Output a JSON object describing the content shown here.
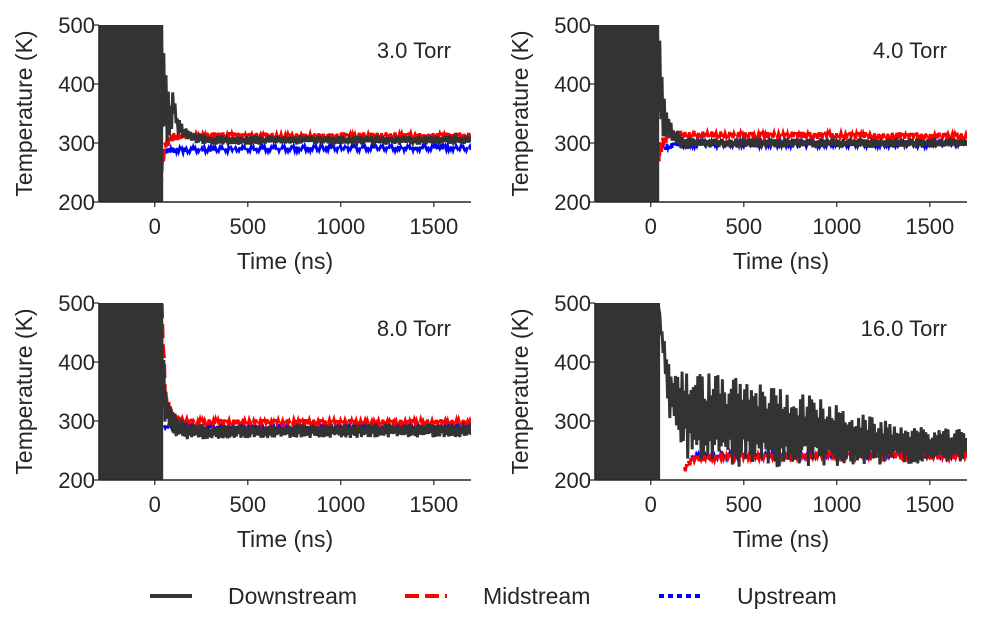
{
  "chart_data": [
    {
      "type": "line",
      "annotation": "3.0 Torr",
      "xlabel": "Time (ns)",
      "ylabel": "Temperature (K)",
      "xlim": [
        -300,
        1700
      ],
      "ylim": [
        200,
        500
      ],
      "xticks": [
        "0",
        "500",
        "1000",
        "1500"
      ],
      "yticks": [
        "200",
        "300",
        "400",
        "500"
      ],
      "x_tick_values": [
        0,
        500,
        1000,
        1500
      ],
      "y_tick_values": [
        200,
        300,
        400,
        500
      ],
      "grid": false,
      "series": [
        {
          "name": "Downstream",
          "color": "#333333",
          "style": "solid",
          "x": [
            -300,
            0,
            40,
            60,
            80,
            100,
            120,
            150,
            200,
            300,
            500,
            800,
            1000,
            1200,
            1500,
            1700
          ],
          "y": [
            500,
            500,
            420,
            360,
            340,
            370,
            330,
            320,
            310,
            305,
            305,
            305,
            305,
            305,
            305,
            305
          ],
          "jitter": [
            300,
            300,
            120,
            60,
            40,
            25,
            15,
            12,
            10,
            8,
            8,
            8,
            8,
            8,
            8,
            8
          ]
        },
        {
          "name": "Midstream",
          "color": "#ff0000",
          "style": "dashed",
          "x": [
            30,
            40,
            60,
            100,
            200,
            500,
            1000,
            1500,
            1700
          ],
          "y": [
            210,
            260,
            300,
            310,
            312,
            312,
            312,
            312,
            312
          ],
          "jitter": [
            10,
            20,
            12,
            8,
            6,
            6,
            6,
            6,
            6
          ]
        },
        {
          "name": "Upstream",
          "color": "#0000ff",
          "style": "dotted",
          "x": [
            50,
            100,
            200,
            500,
            1000,
            1500,
            1700
          ],
          "y": [
            285,
            288,
            288,
            290,
            292,
            292,
            292
          ],
          "jitter": [
            6,
            5,
            4,
            4,
            4,
            4,
            4
          ]
        }
      ]
    },
    {
      "type": "line",
      "annotation": "4.0 Torr",
      "xlabel": "Time (ns)",
      "ylabel": "Temperature (K)",
      "xlim": [
        -300,
        1700
      ],
      "ylim": [
        200,
        500
      ],
      "xticks": [
        "0",
        "500",
        "1000",
        "1500"
      ],
      "yticks": [
        "200",
        "300",
        "400",
        "500"
      ],
      "x_tick_values": [
        0,
        500,
        1000,
        1500
      ],
      "y_tick_values": [
        200,
        300,
        400,
        500
      ],
      "grid": false,
      "series": [
        {
          "name": "Downstream",
          "color": "#333333",
          "style": "solid",
          "x": [
            -300,
            0,
            40,
            60,
            80,
            100,
            150,
            200,
            300,
            500,
            800,
            1000,
            1200,
            1500,
            1700
          ],
          "y": [
            500,
            500,
            410,
            370,
            340,
            320,
            305,
            300,
            300,
            300,
            300,
            300,
            300,
            300,
            300
          ],
          "jitter": [
            300,
            300,
            120,
            60,
            30,
            20,
            15,
            10,
            8,
            8,
            8,
            8,
            8,
            8,
            8
          ]
        },
        {
          "name": "Midstream",
          "color": "#ff0000",
          "style": "dashed",
          "x": [
            40,
            60,
            100,
            200,
            500,
            1000,
            1500,
            1700
          ],
          "y": [
            280,
            300,
            315,
            315,
            313,
            313,
            312,
            312
          ],
          "jitter": [
            20,
            15,
            8,
            6,
            6,
            6,
            6,
            6
          ]
        },
        {
          "name": "Upstream",
          "color": "#0000ff",
          "style": "dotted",
          "x": [
            50,
            100,
            200,
            500,
            1000,
            1500,
            1700
          ],
          "y": [
            292,
            295,
            298,
            298,
            298,
            298,
            298
          ],
          "jitter": [
            6,
            5,
            4,
            4,
            4,
            4,
            4
          ]
        }
      ]
    },
    {
      "type": "line",
      "annotation": "8.0 Torr",
      "xlabel": "Time (ns)",
      "ylabel": "Temperature (K)",
      "xlim": [
        -300,
        1700
      ],
      "ylim": [
        200,
        500
      ],
      "xticks": [
        "0",
        "500",
        "1000",
        "1500"
      ],
      "yticks": [
        "200",
        "300",
        "400",
        "500"
      ],
      "x_tick_values": [
        0,
        500,
        1000,
        1500
      ],
      "y_tick_values": [
        200,
        300,
        400,
        500
      ],
      "grid": false,
      "series": [
        {
          "name": "Downstream",
          "color": "#333333",
          "style": "solid",
          "x": [
            -300,
            0,
            40,
            60,
            100,
            150,
            200,
            300,
            500,
            800,
            1000,
            1200,
            1500,
            1700
          ],
          "y": [
            500,
            500,
            380,
            320,
            295,
            285,
            282,
            282,
            283,
            283,
            283,
            284,
            284,
            285
          ],
          "jitter": [
            300,
            300,
            120,
            30,
            22,
            16,
            14,
            12,
            12,
            12,
            12,
            12,
            12,
            12
          ]
        },
        {
          "name": "Midstream",
          "color": "#ff0000",
          "style": "dashed",
          "x": [
            40,
            60,
            100,
            200,
            500,
            1000,
            1500,
            1700
          ],
          "y": [
            480,
            330,
            305,
            298,
            298,
            298,
            298,
            298
          ],
          "jitter": [
            20,
            15,
            8,
            5,
            5,
            5,
            5,
            5
          ]
        },
        {
          "name": "Upstream",
          "color": "#0000ff",
          "style": "dotted",
          "x": [
            50,
            100,
            200,
            500,
            1000,
            1500,
            1700
          ],
          "y": [
            290,
            290,
            290,
            290,
            290,
            290,
            290
          ],
          "jitter": [
            4,
            4,
            4,
            4,
            4,
            4,
            4
          ]
        }
      ]
    },
    {
      "type": "line",
      "annotation": "16.0 Torr",
      "xlabel": "Time (ns)",
      "ylabel": "Temperature (K)",
      "xlim": [
        -300,
        1700
      ],
      "ylim": [
        200,
        500
      ],
      "xticks": [
        "0",
        "500",
        "1000",
        "1500"
      ],
      "yticks": [
        "200",
        "300",
        "400",
        "500"
      ],
      "x_tick_values": [
        0,
        500,
        1000,
        1500
      ],
      "y_tick_values": [
        200,
        300,
        400,
        500
      ],
      "grid": false,
      "series": [
        {
          "name": "Downstream",
          "color": "#333333",
          "style": "solid",
          "x": [
            -300,
            0,
            40,
            60,
            100,
            200,
            300,
            500,
            700,
            900,
            1100,
            1300,
            1500,
            1700
          ],
          "y": [
            500,
            500,
            500,
            440,
            350,
            310,
            305,
            295,
            290,
            280,
            270,
            262,
            258,
            258
          ],
          "jitter": [
            0,
            0,
            0,
            25,
            45,
            75,
            80,
            75,
            70,
            60,
            45,
            35,
            30,
            28
          ]
        },
        {
          "name": "Midstream",
          "color": "#ff0000",
          "style": "dashed",
          "x": [
            180,
            220,
            300,
            500,
            800,
            1000,
            1300,
            1500,
            1700
          ],
          "y": [
            215,
            235,
            238,
            240,
            240,
            242,
            242,
            240,
            240
          ],
          "jitter": [
            8,
            6,
            5,
            5,
            5,
            5,
            5,
            5,
            5
          ]
        },
        {
          "name": "Upstream",
          "color": "#0000ff",
          "style": "dotted",
          "x": [
            220,
            500,
            1000,
            1500,
            1700
          ],
          "y": [
            240,
            242,
            244,
            244,
            244
          ],
          "jitter": [
            4,
            4,
            4,
            4,
            4
          ]
        }
      ]
    }
  ],
  "legend": {
    "placement": "bottom",
    "items": [
      {
        "label": "Downstream",
        "color": "#333333",
        "style": "solid"
      },
      {
        "label": "Midstream",
        "color": "#ff0000",
        "style": "dashed"
      },
      {
        "label": "Upstream",
        "color": "#0000ff",
        "style": "dotted"
      }
    ]
  }
}
